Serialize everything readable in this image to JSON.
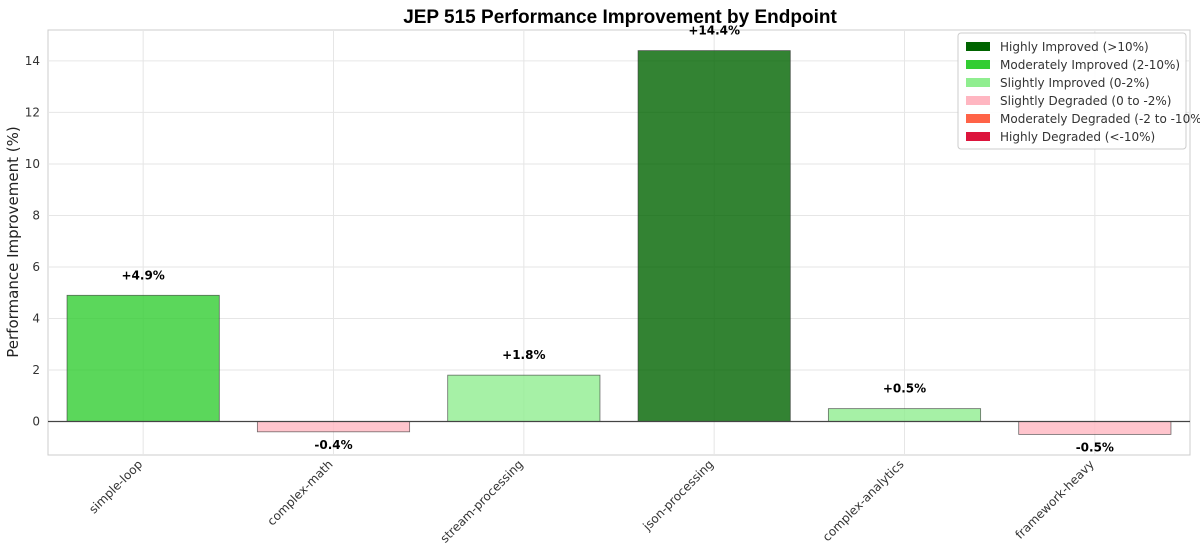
{
  "chart_data": {
    "type": "bar",
    "title": "JEP 515 Performance Improvement by Endpoint",
    "xlabel": "",
    "ylabel": "Performance Improvement (%)",
    "ylim": [
      -1.3,
      15.2
    ],
    "yticks": [
      0,
      2,
      4,
      6,
      8,
      10,
      12,
      14
    ],
    "grid": true,
    "legend_position": "top-right",
    "categories": [
      "simple-loop",
      "complex-math",
      "stream-processing",
      "json-processing",
      "complex-analytics",
      "framework-heavy"
    ],
    "values": [
      4.9,
      -0.4,
      1.8,
      14.4,
      0.5,
      -0.5
    ],
    "data_labels": [
      "+4.9%",
      "-0.4%",
      "+1.8%",
      "+14.4%",
      "+0.5%",
      "-0.5%"
    ],
    "bar_categories": [
      "moderately_improved",
      "slightly_degraded",
      "slightly_improved",
      "highly_improved",
      "slightly_improved",
      "slightly_degraded"
    ],
    "legend": [
      {
        "key": "highly_improved",
        "label": "Highly Improved (>10%)",
        "color": "#006400"
      },
      {
        "key": "moderately_improved",
        "label": "Moderately Improved (2-10%)",
        "color": "#32CD32"
      },
      {
        "key": "slightly_improved",
        "label": "Slightly Improved (0-2%)",
        "color": "#90EE90"
      },
      {
        "key": "slightly_degraded",
        "label": "Slightly Degraded (0 to -2%)",
        "color": "#FFB6C1"
      },
      {
        "key": "moderately_degraded",
        "label": "Moderately Degraded (-2 to -10%)",
        "color": "#FF6347"
      },
      {
        "key": "highly_degraded",
        "label": "Highly Degraded (<-10%)",
        "color": "#DC143C"
      }
    ]
  }
}
